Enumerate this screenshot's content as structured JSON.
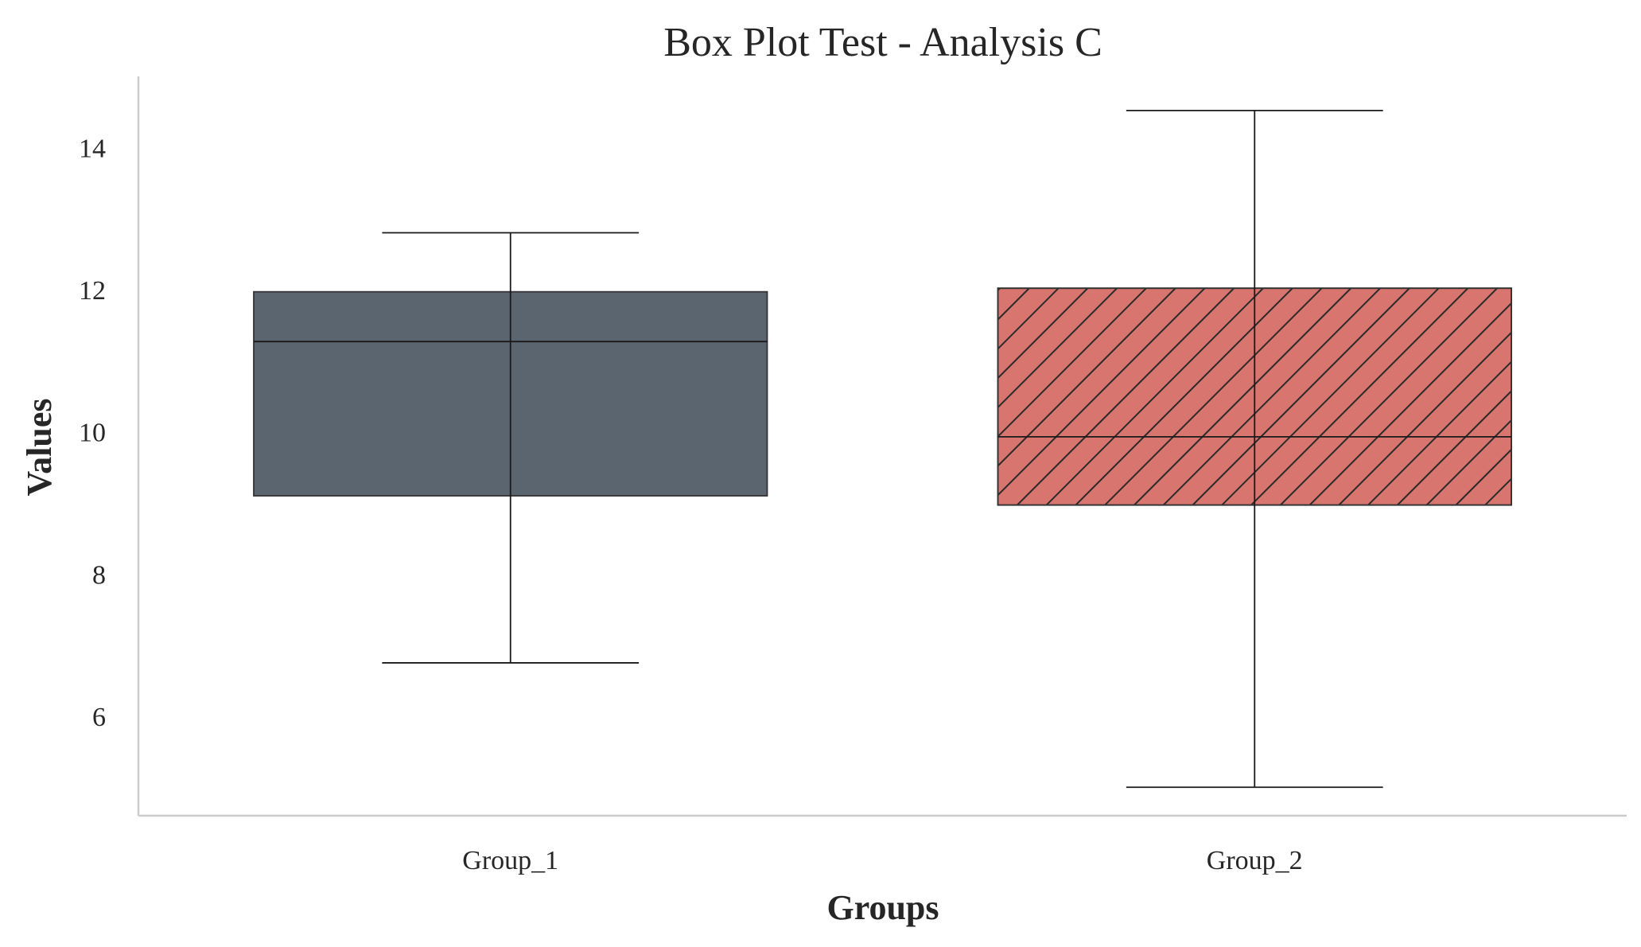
{
  "chart_data": {
    "type": "box",
    "title": "Box Plot Test - Analysis C",
    "xlabel": "Groups",
    "ylabel": "Values",
    "ylim": [
      4.6,
      15.0
    ],
    "yticks": [
      6,
      8,
      10,
      12,
      14
    ],
    "categories": [
      "Group_1",
      "Group_2"
    ],
    "boxes": [
      {
        "name": "Group_1",
        "whisker_low": 6.75,
        "q1": 9.1,
        "median": 11.27,
        "q3": 11.97,
        "whisker_high": 12.8,
        "color": "#5a6570",
        "hatch": false
      },
      {
        "name": "Group_2",
        "whisker_low": 5.0,
        "q1": 8.97,
        "median": 9.93,
        "q3": 12.02,
        "whisker_high": 14.52,
        "color": "#d9756f",
        "hatch": true
      }
    ],
    "grid": false,
    "legend": false
  }
}
